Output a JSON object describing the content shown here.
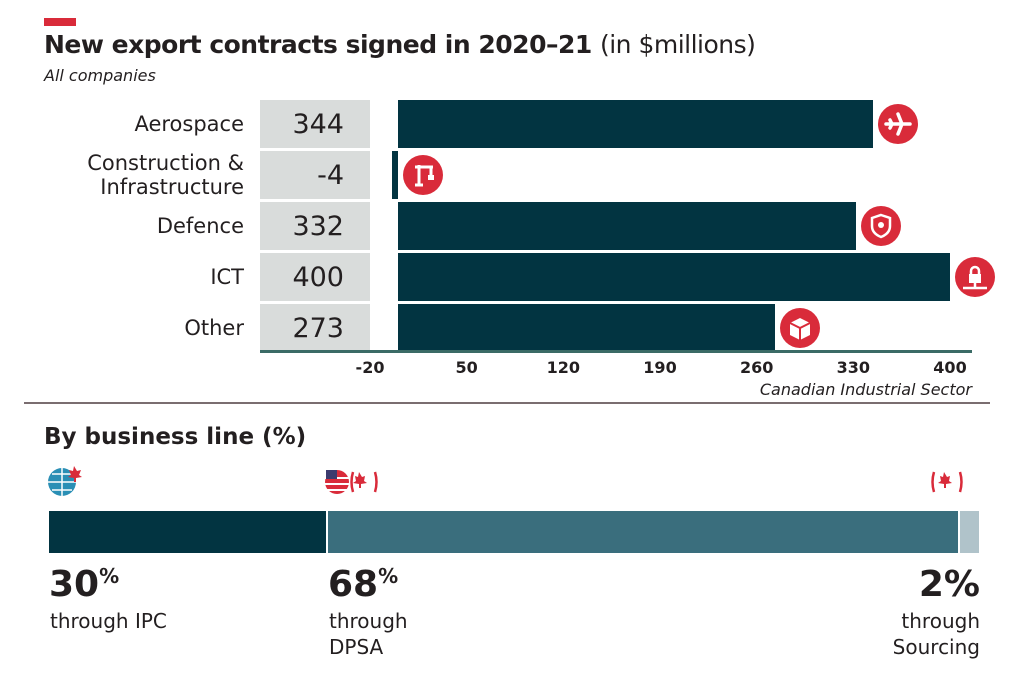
{
  "title": "New export contracts signed in 2020–21",
  "title_suffix": "(in $millions)",
  "subtitle": "All companies",
  "chart_data": {
    "type": "bar",
    "orientation": "horizontal",
    "categories": [
      "Aerospace",
      "Construction & Infrastructure",
      "Defence",
      "ICT",
      "Other"
    ],
    "category_lines": [
      [
        "Aerospace"
      ],
      [
        "Construction &",
        "Infrastructure"
      ],
      [
        "Defence"
      ],
      [
        "ICT"
      ],
      [
        "Other"
      ]
    ],
    "values": [
      344,
      -4,
      332,
      400,
      273
    ],
    "value_labels": [
      "344",
      "-4",
      "332",
      "400",
      "273"
    ],
    "icons": [
      "airplane-icon",
      "crane-icon",
      "shield-icon",
      "lock-network-icon",
      "box-icon"
    ],
    "xticks": [
      "-20",
      "50",
      "120",
      "190",
      "260",
      "330",
      "400"
    ],
    "xlim": [
      -20,
      400
    ],
    "xlabel": "Canadian Industrial Sector",
    "bar_color": "#023441",
    "icon_color": "#d92b3a"
  },
  "business_line": {
    "title": "By business line (%)",
    "segments": [
      {
        "value": 30,
        "pct": "30",
        "unit": "%",
        "label_lines": [
          "through IPC"
        ],
        "color": "#023441",
        "icon": "globe-canada-icon"
      },
      {
        "value": 68,
        "pct": "68",
        "unit": "%",
        "label_lines": [
          "through",
          "DPSA"
        ],
        "color": "#3a6e7d",
        "icon": "us-canada-flag-icon"
      },
      {
        "value": 2,
        "pct": "2",
        "unit": "%",
        "label_lines": [
          "through",
          "Sourcing"
        ],
        "color": "#b0c3ca",
        "icon": "canada-flag-icon"
      }
    ]
  }
}
